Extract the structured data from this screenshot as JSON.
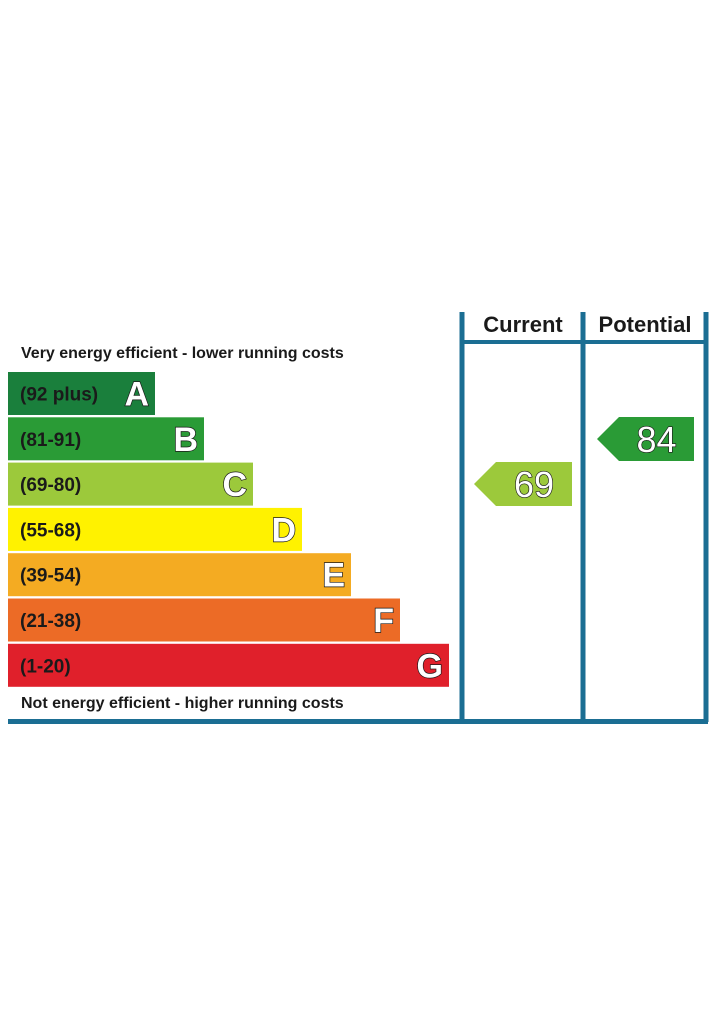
{
  "chart_data": {
    "type": "bar",
    "headers": {
      "current": "Current",
      "potential": "Potential"
    },
    "top_caption": "Very energy efficient - lower running costs",
    "bottom_caption": "Not energy efficient - higher running costs",
    "bands": [
      {
        "letter": "A",
        "range": "(92 plus)",
        "color": "#1a7f3c"
      },
      {
        "letter": "B",
        "range": "(81-91)",
        "color": "#2a9b36"
      },
      {
        "letter": "C",
        "range": "(69-80)",
        "color": "#9cc93b"
      },
      {
        "letter": "D",
        "range": "(55-68)",
        "color": "#fff200"
      },
      {
        "letter": "E",
        "range": "(39-54)",
        "color": "#f4ab22"
      },
      {
        "letter": "F",
        "range": "(21-38)",
        "color": "#ec6b26"
      },
      {
        "letter": "G",
        "range": "(1-20)",
        "color": "#e0202b"
      }
    ],
    "current": {
      "value": 69,
      "band": "C",
      "color": "#9cc93b"
    },
    "potential": {
      "value": 84,
      "band": "B",
      "color": "#2a9b36"
    },
    "frame_color": "#1b6e93"
  }
}
